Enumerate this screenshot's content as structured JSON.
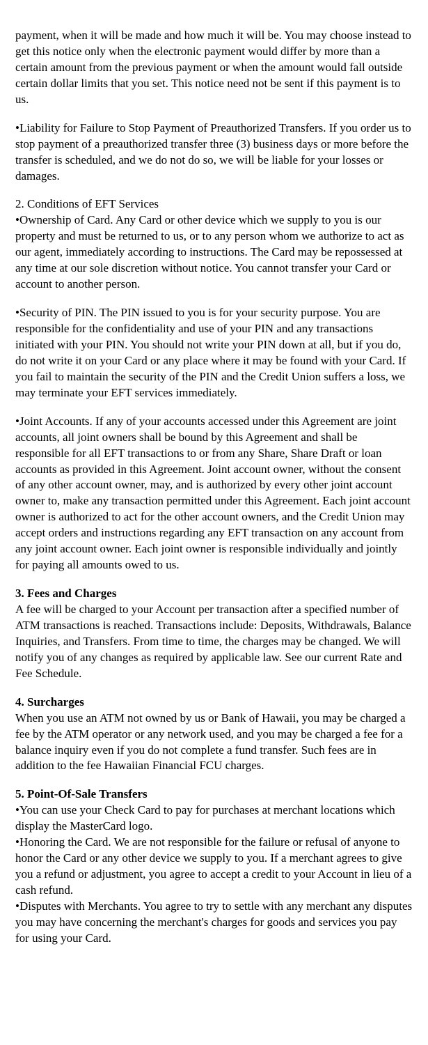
{
  "paragraphs": {
    "p1": "payment, when it will be made and how much it will be. You may choose instead to get this notice only when the electronic payment would differ by more than a certain amount from the previous payment or when the amount would fall outside certain dollar limits that you set. This notice need not be sent if this payment is to us.",
    "p2": "•Liability for Failure to Stop Payment of Preauthorized Transfers. If you order us to stop payment of a preauthorized transfer three (3) business days or more before the transfer is scheduled, and we do not do so, we will be liable for your losses or damages.",
    "p3a": "2. Conditions of EFT Services",
    "p3b": "•Ownership of Card. Any Card or other device which we supply to you is our property and must be returned to us, or to any person whom we authorize to act as our agent, immediately according to instructions. The Card may be repossessed at any time at our sole discretion without notice. You cannot transfer your Card or account to another person.",
    "p4": "•Security of PIN. The PIN issued to you is for your security purpose. You are responsible for the confidentiality and use of your PIN and any transactions initiated with your PIN. You should not write your PIN down at all, but if you do, do not write it on your Card or any place where it may be found with your Card. If you fail to maintain the security of the PIN and the Credit Union suffers a loss, we may terminate your EFT services immediately.",
    "p5": "•Joint Accounts. If any of your accounts accessed under this Agreement are joint accounts, all joint owners shall be bound by this Agreement and shall be responsible for all EFT transactions to or from any Share, Share Draft or loan accounts as provided in this Agreement. Joint account owner, without the consent of any other account owner, may, and is authorized by every other joint account owner to, make any transaction permitted under this Agreement. Each joint account owner is authorized to act for the other account owners, and the Credit Union may accept orders and instructions regarding any EFT transaction on any account from any joint account owner. Each joint owner is responsible individually and jointly for paying all amounts owed to us.",
    "h3": "3. Fees and Charges",
    "p6": "A fee will be charged to your Account per transaction after a specified number of ATM transactions is reached. Transactions include: Deposits, Withdrawals, Balance Inquiries, and Transfers. From time to time, the charges may be changed. We will notify you of any changes as required by applicable law. See our current Rate and Fee Schedule.",
    "h4": "4. Surcharges",
    "p7": "When you use an ATM not owned by us or Bank of Hawaii, you may be charged a fee by the ATM operator or any network used, and you may be charged a fee for a balance inquiry even if you do not complete a fund transfer. Such fees are in addition to the fee Hawaiian Financial FCU charges.",
    "h5": "5. Point-Of-Sale Transfers",
    "p8": "•You can use your Check Card to pay for purchases at merchant locations which display the MasterCard logo.",
    "p9": "•Honoring the Card. We are not responsible for the failure or refusal of anyone to honor the Card or any other device we supply to you. If a merchant agrees to give you a refund or adjustment, you agree to accept a credit to your Account in lieu of a cash refund.",
    "p10": "•Disputes with Merchants. You agree to try to settle with any merchant any disputes you may have concerning the merchant's charges for goods and services you pay for using your Card."
  }
}
